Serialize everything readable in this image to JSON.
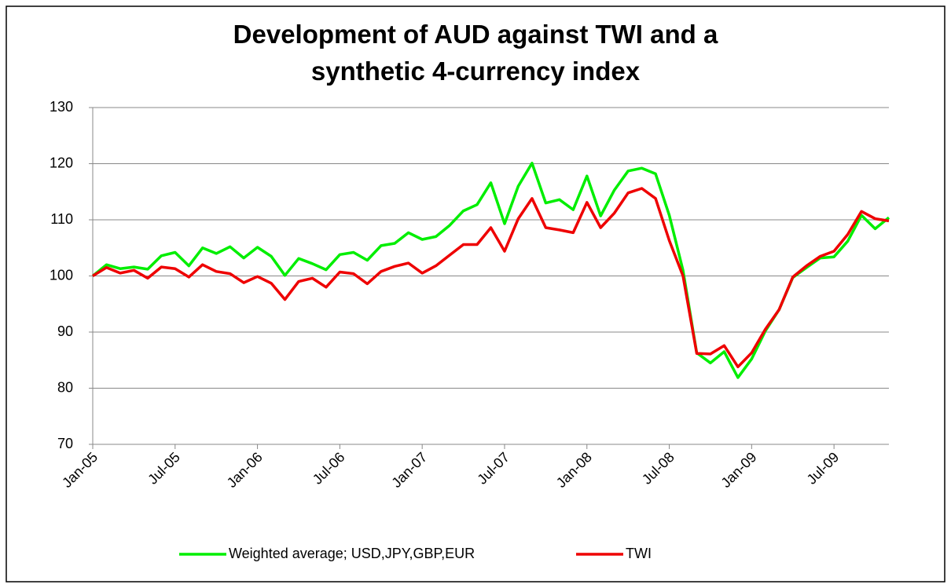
{
  "chart_data": {
    "type": "line",
    "title": "Development of AUD against TWI and a synthetic 4-currency index",
    "categories": [
      "Jan-05",
      null,
      null,
      null,
      null,
      null,
      "Jul-05",
      null,
      null,
      null,
      null,
      null,
      "Jan-06",
      null,
      null,
      null,
      null,
      null,
      "Jul-06",
      null,
      null,
      null,
      null,
      null,
      "Jan-07",
      null,
      null,
      null,
      null,
      null,
      "Jul-07",
      null,
      null,
      null,
      null,
      null,
      "Jan-08",
      null,
      null,
      null,
      null,
      null,
      "Jul-08",
      null,
      null,
      null,
      null,
      null,
      "Jan-09",
      null,
      null,
      null,
      null,
      null,
      "Jul-09",
      null,
      null,
      null,
      null
    ],
    "series": [
      {
        "name": "Weighted average; USD,JPY,GBP,EUR",
        "color": "#00ee00",
        "values": [
          100,
          102,
          101.3,
          101.6,
          101.2,
          103.6,
          104.2,
          101.8,
          105,
          104,
          105.2,
          103.2,
          105.1,
          103.5,
          100.1,
          103.1,
          102.2,
          101.1,
          103.8,
          104.2,
          102.8,
          105.4,
          105.8,
          107.7,
          106.5,
          107,
          109,
          111.6,
          112.7,
          116.6,
          109.3,
          116,
          120.1,
          113,
          113.6,
          111.8,
          117.8,
          110.7,
          115.3,
          118.7,
          119.2,
          118.2,
          110.8,
          101,
          86.3,
          84.5,
          86.5,
          81.9,
          85.2,
          90.2,
          94,
          99.7,
          101.5,
          103.2,
          103.4,
          106.2,
          110.8,
          108.4,
          110.4
        ]
      },
      {
        "name": "TWI",
        "color": "#ee0000",
        "values": [
          100,
          101.5,
          100.5,
          101,
          99.6,
          101.6,
          101.3,
          99.8,
          102,
          100.8,
          100.4,
          98.8,
          99.9,
          98.7,
          95.8,
          99,
          99.6,
          98,
          100.7,
          100.4,
          98.6,
          100.8,
          101.7,
          102.3,
          100.5,
          101.8,
          103.7,
          105.6,
          105.6,
          108.6,
          104.4,
          110.2,
          113.8,
          108.6,
          108.2,
          107.7,
          113.1,
          108.6,
          111.2,
          114.8,
          115.6,
          113.8,
          106.3,
          100,
          86.2,
          86.1,
          87.6,
          83.8,
          86.3,
          90.5,
          94,
          99.8,
          101.8,
          103.5,
          104.4,
          107.4,
          111.5,
          110.2,
          109.8
        ]
      }
    ],
    "ylim": [
      70,
      130
    ],
    "yticks": [
      70,
      80,
      90,
      100,
      110,
      120,
      130
    ],
    "grid": true,
    "legend": "bottom"
  }
}
